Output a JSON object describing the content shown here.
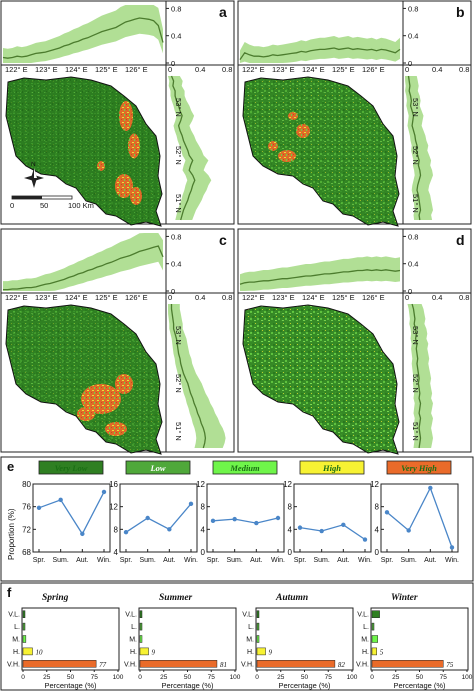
{
  "map_panels": [
    {
      "letter": "a",
      "lon_ticks": [
        "122° E",
        "123° E",
        "124° E",
        "125° E",
        "126° E"
      ],
      "lat_ticks": [
        "53° N",
        "52° N",
        "51° N"
      ],
      "top_yticks": [
        "0.8",
        "0.4",
        "0"
      ],
      "side_xticks": [
        "0",
        "0.4",
        "0.8"
      ],
      "north_label": "N",
      "scale_labels": [
        "0",
        "50",
        "100 Km"
      ],
      "top_profile": [
        0.08,
        0.07,
        0.08,
        0.1,
        0.09,
        0.1,
        0.12,
        0.14,
        0.15,
        0.16,
        0.18,
        0.2,
        0.22,
        0.25,
        0.27,
        0.3,
        0.32,
        0.35,
        0.37,
        0.4,
        0.43,
        0.46,
        0.48,
        0.5,
        0.52,
        0.56,
        0.6,
        0.62,
        0.64,
        0.66,
        0.65,
        0.64,
        0.62,
        0.55,
        0.3
      ],
      "side_profile": [
        0.05,
        0.08,
        0.07,
        0.1,
        0.1,
        0.12,
        0.15,
        0.17,
        0.2,
        0.18,
        0.15,
        0.17,
        0.2,
        0.22,
        0.25,
        0.28,
        0.3,
        0.35,
        0.32,
        0.3,
        0.35,
        0.38,
        0.35,
        0.33,
        0.3,
        0.28,
        0.25,
        0.22,
        0.2,
        0.18
      ]
    },
    {
      "letter": "b",
      "lon_ticks": [
        "122° E",
        "123° E",
        "124° E",
        "125° E",
        "126° E"
      ],
      "lat_ticks": [
        "53° N",
        "52° N",
        "51° N"
      ],
      "top_yticks": [
        "0.8",
        "0.4",
        "0"
      ],
      "side_xticks": [
        "0",
        "0.4",
        "0.8"
      ],
      "top_profile": [
        0.05,
        0.15,
        0.12,
        0.1,
        0.1,
        0.09,
        0.1,
        0.12,
        0.11,
        0.12,
        0.13,
        0.14,
        0.15,
        0.17,
        0.16,
        0.18,
        0.19,
        0.2,
        0.2,
        0.21,
        0.22,
        0.2,
        0.21,
        0.22,
        0.2,
        0.21,
        0.2,
        0.19,
        0.2,
        0.18,
        0.2,
        0.19,
        0.17,
        0.15,
        0.2
      ],
      "side_profile": [
        0.05,
        0.06,
        0.07,
        0.06,
        0.08,
        0.09,
        0.08,
        0.1,
        0.12,
        0.11,
        0.1,
        0.12,
        0.14,
        0.15,
        0.17,
        0.16,
        0.18,
        0.2,
        0.19,
        0.21,
        0.22,
        0.2,
        0.18,
        0.17,
        0.19,
        0.2,
        0.21,
        0.22,
        0.2,
        0.21
      ]
    },
    {
      "letter": "c",
      "lon_ticks": [
        "122° E",
        "123° E",
        "124° E",
        "125° E",
        "126° E"
      ],
      "lat_ticks": [
        "53° N",
        "52° N",
        "51° N"
      ],
      "top_yticks": [
        "0.8",
        "0.4",
        "0"
      ],
      "side_xticks": [
        "0",
        "0.4",
        "0.8"
      ],
      "top_profile": [
        0.02,
        0.02,
        0.03,
        0.03,
        0.04,
        0.05,
        0.05,
        0.06,
        0.08,
        0.1,
        0.11,
        0.13,
        0.15,
        0.17,
        0.2,
        0.22,
        0.25,
        0.27,
        0.3,
        0.32,
        0.35,
        0.37,
        0.4,
        0.42,
        0.45,
        0.48,
        0.5,
        0.52,
        0.55,
        0.58,
        0.6,
        0.62,
        0.64,
        0.66,
        0.5
      ],
      "side_profile": [
        0.05,
        0.05,
        0.06,
        0.07,
        0.08,
        0.08,
        0.1,
        0.12,
        0.13,
        0.14,
        0.15,
        0.17,
        0.18,
        0.2,
        0.22,
        0.25,
        0.28,
        0.3,
        0.32,
        0.35,
        0.37,
        0.4,
        0.42,
        0.45,
        0.47,
        0.5,
        0.52,
        0.53,
        0.52,
        0.5
      ]
    },
    {
      "letter": "d",
      "lon_ticks": [
        "122° E",
        "123° E",
        "124° E",
        "125° E",
        "126° E"
      ],
      "lat_ticks": [
        "53° N",
        "52° N",
        "51° N"
      ],
      "top_yticks": [
        "0.8",
        "0.4",
        "0"
      ],
      "side_xticks": [
        "0",
        "0.4",
        "0.8"
      ],
      "top_profile": [
        0.1,
        0.12,
        0.13,
        0.13,
        0.14,
        0.15,
        0.15,
        0.16,
        0.17,
        0.18,
        0.18,
        0.19,
        0.2,
        0.21,
        0.22,
        0.22,
        0.23,
        0.24,
        0.25,
        0.25,
        0.26,
        0.27,
        0.28,
        0.28,
        0.29,
        0.3,
        0.3,
        0.31,
        0.3,
        0.31,
        0.3,
        0.31,
        0.3,
        0.29,
        0.3
      ],
      "side_profile": [
        0.1,
        0.12,
        0.13,
        0.14,
        0.13,
        0.15,
        0.16,
        0.15,
        0.17,
        0.16,
        0.17,
        0.18,
        0.17,
        0.18,
        0.19,
        0.2,
        0.19,
        0.2,
        0.21,
        0.2,
        0.22,
        0.21,
        0.2,
        0.22,
        0.21,
        0.2,
        0.21,
        0.22,
        0.21,
        0.2
      ]
    }
  ],
  "panel_e": {
    "letter": "e",
    "ylabel": "Proportion (%)",
    "categories": [
      "Spr.",
      "Sum.",
      "Aut.",
      "Win."
    ],
    "charts": [
      {
        "legend": "Very Low",
        "legend_color": "#2f7f22",
        "text_color": "#1a6e14",
        "yticks": [
          "80",
          "76",
          "72",
          "68"
        ],
        "ylim": [
          68,
          80
        ],
        "values": [
          75.8,
          77.2,
          71.2,
          78.6
        ]
      },
      {
        "legend": "Low",
        "legend_color": "#4fa83a",
        "text_color": "#ffffff",
        "yticks": [
          "16",
          "12",
          "8",
          "4"
        ],
        "ylim": [
          4,
          16
        ],
        "values": [
          7.5,
          10,
          8,
          12.5
        ]
      },
      {
        "legend": "Medium",
        "legend_color": "#6ff54a",
        "text_color": "#1a6e14",
        "yticks": [
          "12",
          "8",
          "4",
          "0"
        ],
        "ylim": [
          0,
          12
        ],
        "values": [
          5.5,
          5.8,
          5.1,
          6
        ]
      },
      {
        "legend": "High",
        "legend_color": "#f7f233",
        "text_color": "#1a6e14",
        "yticks": [
          "12",
          "8",
          "4",
          "0"
        ],
        "ylim": [
          0,
          12
        ],
        "values": [
          4.3,
          3.7,
          4.8,
          2.2
        ]
      },
      {
        "legend": "Very High",
        "legend_color": "#ea6b2a",
        "text_color": "#1a6e14",
        "yticks": [
          "12",
          "8",
          "4",
          "0"
        ],
        "ylim": [
          0,
          12
        ],
        "values": [
          7,
          3.8,
          11.3,
          0.8
        ]
      }
    ]
  },
  "panel_f": {
    "letter": "f",
    "xlabel": "Percentage (%)",
    "xticks": [
      "0",
      "25",
      "50",
      "75",
      "100"
    ],
    "row_labels": [
      "V.L.",
      "L.",
      "M.",
      "H.",
      "V.H."
    ],
    "bar_colors": [
      "#2f7f22",
      "#4fa83a",
      "#6ff54a",
      "#f7f233",
      "#ea6b2a"
    ],
    "charts": [
      {
        "title": "Spring",
        "values": [
          1,
          2,
          3,
          10,
          77
        ],
        "labels": [
          "",
          "",
          "",
          "10",
          "77"
        ]
      },
      {
        "title": "Summer",
        "values": [
          1,
          2,
          2,
          9,
          81
        ],
        "labels": [
          "",
          "",
          "",
          "9",
          "81"
        ]
      },
      {
        "title": "Autumn",
        "values": [
          1,
          2,
          2,
          9,
          82
        ],
        "labels": [
          "",
          "",
          "",
          "9",
          "82"
        ]
      },
      {
        "title": "Winter",
        "values": [
          8,
          2,
          6,
          5,
          75
        ],
        "labels": [
          "",
          "",
          "",
          "5",
          "75"
        ]
      }
    ]
  }
}
